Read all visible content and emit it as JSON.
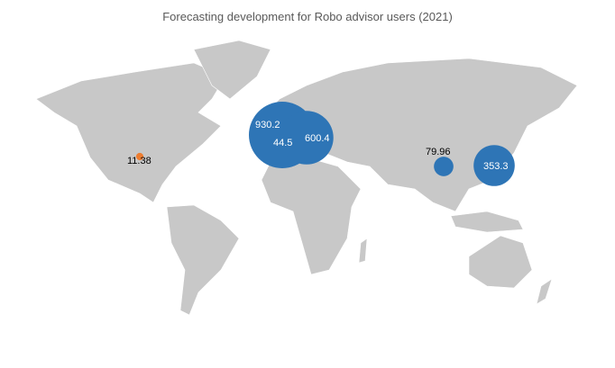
{
  "chart_data": {
    "type": "bubble-map",
    "title": "Forecasting development for Robo advisor users (2021)",
    "region": "world",
    "points": [
      {
        "label": "930.2",
        "value": 930.2,
        "color": "#2e75b6",
        "location": "Western Europe"
      },
      {
        "label": "44.5",
        "value": 44.5,
        "color": "#2e75b6",
        "location": "Western Europe"
      },
      {
        "label": "600.4",
        "value": 600.4,
        "color": "#2e75b6",
        "location": "Central Europe"
      },
      {
        "label": "79.96",
        "value": 79.96,
        "color": "#2e75b6",
        "location": "China"
      },
      {
        "label": "353.3",
        "value": 353.3,
        "color": "#2e75b6",
        "location": "Japan"
      },
      {
        "label": "11.38",
        "value": 11.38,
        "color": "#ed7d31",
        "location": "United States"
      }
    ],
    "colors": {
      "land": "#c8c8c8",
      "bubble": "#2e75b6",
      "highlight": "#ed7d31"
    }
  }
}
